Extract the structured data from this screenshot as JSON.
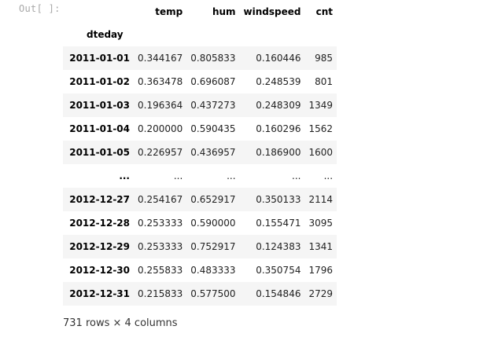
{
  "prompt": "Out[ ]:",
  "table": {
    "index_name": "dteday",
    "columns": [
      "temp",
      "hum",
      "windspeed",
      "cnt"
    ],
    "rows": [
      {
        "index": "2011-01-01",
        "cells": [
          "0.344167",
          "0.805833",
          "0.160446",
          "985"
        ]
      },
      {
        "index": "2011-01-02",
        "cells": [
          "0.363478",
          "0.696087",
          "0.248539",
          "801"
        ]
      },
      {
        "index": "2011-01-03",
        "cells": [
          "0.196364",
          "0.437273",
          "0.248309",
          "1349"
        ]
      },
      {
        "index": "2011-01-04",
        "cells": [
          "0.200000",
          "0.590435",
          "0.160296",
          "1562"
        ]
      },
      {
        "index": "2011-01-05",
        "cells": [
          "0.226957",
          "0.436957",
          "0.186900",
          "1600"
        ]
      },
      {
        "index": "...",
        "cells": [
          "...",
          "...",
          "...",
          "..."
        ]
      },
      {
        "index": "2012-12-27",
        "cells": [
          "0.254167",
          "0.652917",
          "0.350133",
          "2114"
        ]
      },
      {
        "index": "2012-12-28",
        "cells": [
          "0.253333",
          "0.590000",
          "0.155471",
          "3095"
        ]
      },
      {
        "index": "2012-12-29",
        "cells": [
          "0.253333",
          "0.752917",
          "0.124383",
          "1341"
        ]
      },
      {
        "index": "2012-12-30",
        "cells": [
          "0.255833",
          "0.483333",
          "0.350754",
          "1796"
        ]
      },
      {
        "index": "2012-12-31",
        "cells": [
          "0.215833",
          "0.577500",
          "0.154846",
          "2729"
        ]
      }
    ]
  },
  "shape_text": "731 rows × 4 columns",
  "colors": {
    "prompt": "#a8a8a8",
    "stripe": "#f5f5f5",
    "text": "#000000"
  }
}
